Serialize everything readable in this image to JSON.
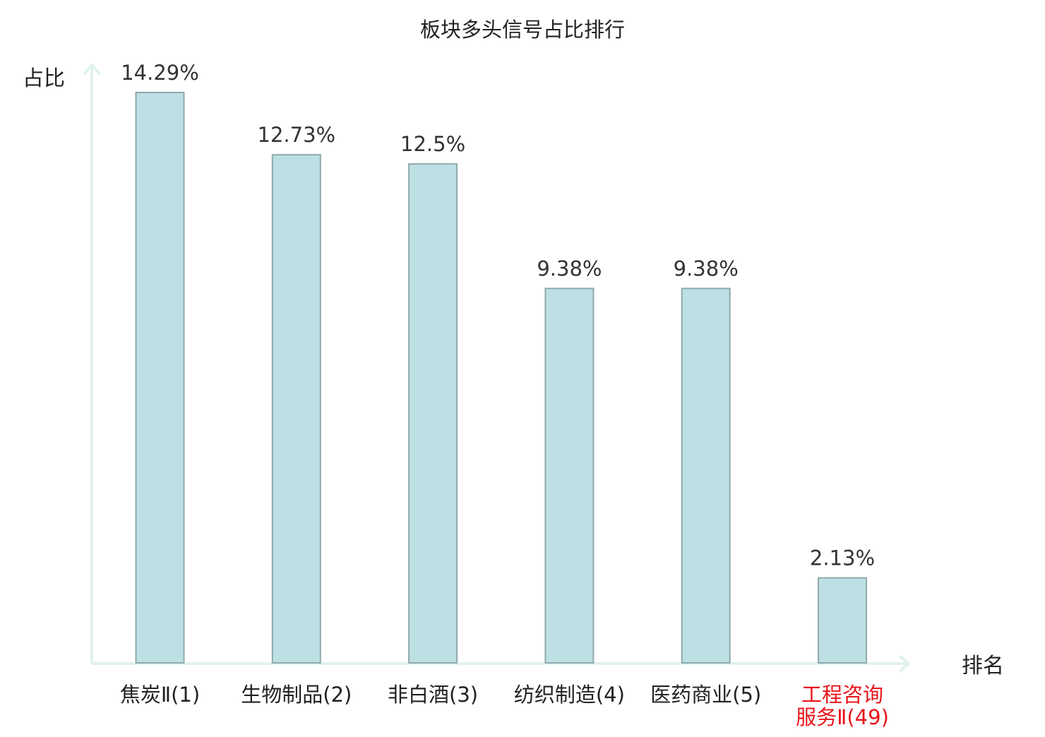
{
  "chart_data": {
    "type": "bar",
    "title": "板块多头信号占比排行",
    "ylabel": "占比",
    "xlabel": "排名",
    "categories": [
      {
        "lines": [
          "焦炭Ⅱ(1)"
        ],
        "highlight": false
      },
      {
        "lines": [
          "生物制品(2)"
        ],
        "highlight": false
      },
      {
        "lines": [
          "非白酒(3)"
        ],
        "highlight": false
      },
      {
        "lines": [
          "纺织制造(4)"
        ],
        "highlight": false
      },
      {
        "lines": [
          "医药商业(5)"
        ],
        "highlight": false
      },
      {
        "lines": [
          "工程咨询",
          "服务Ⅱ(49)"
        ],
        "highlight": true
      }
    ],
    "values": [
      14.29,
      12.73,
      12.5,
      9.38,
      9.38,
      2.13
    ],
    "value_labels": [
      "14.29%",
      "12.73%",
      "12.5%",
      "9.38%",
      "9.38%",
      "2.13%"
    ],
    "ylim": [
      0,
      14.29
    ],
    "grid": false,
    "colors": {
      "bar_fill": "#bce0e3",
      "bar_stroke": "#8fa9ac",
      "axis": "#e1f2ef",
      "text": "#333333",
      "highlight_text": "#e8141b"
    }
  }
}
